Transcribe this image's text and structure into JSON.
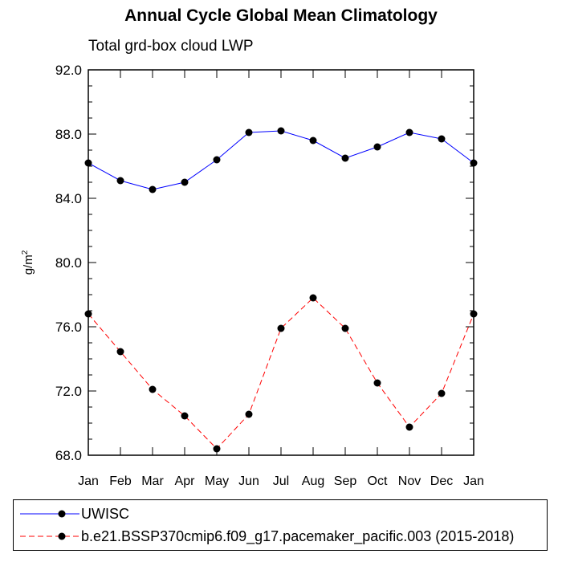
{
  "chart_data": {
    "type": "line",
    "title": "Annual Cycle Global Mean Climatology",
    "subtitle": "Total grd-box cloud LWP",
    "ylabel": "g/m",
    "ylabel_sup": "2",
    "ylim": [
      68.0,
      92.0
    ],
    "yticks": [
      "68.0",
      "72.0",
      "76.0",
      "80.0",
      "84.0",
      "88.0",
      "92.0"
    ],
    "categories": [
      "Jan",
      "Feb",
      "Mar",
      "Apr",
      "May",
      "Jun",
      "Jul",
      "Aug",
      "Sep",
      "Oct",
      "Nov",
      "Dec",
      "Jan"
    ],
    "grid": false,
    "legend_position": "bottom",
    "series": [
      {
        "name": "UWISC",
        "color": "#0000ff",
        "style": "solid",
        "values": [
          86.2,
          85.1,
          84.55,
          85.0,
          86.4,
          88.1,
          88.2,
          87.6,
          86.5,
          87.2,
          88.1,
          87.7,
          86.2
        ]
      },
      {
        "name": "b.e21.BSSP370cmip6.f09_g17.pacemaker_pacific.003 (2015-2018)",
        "color": "#ff0000",
        "style": "dashed",
        "values": [
          76.8,
          74.45,
          72.1,
          70.45,
          68.4,
          70.55,
          75.9,
          77.8,
          75.9,
          72.5,
          69.75,
          71.85,
          76.8
        ]
      }
    ]
  }
}
